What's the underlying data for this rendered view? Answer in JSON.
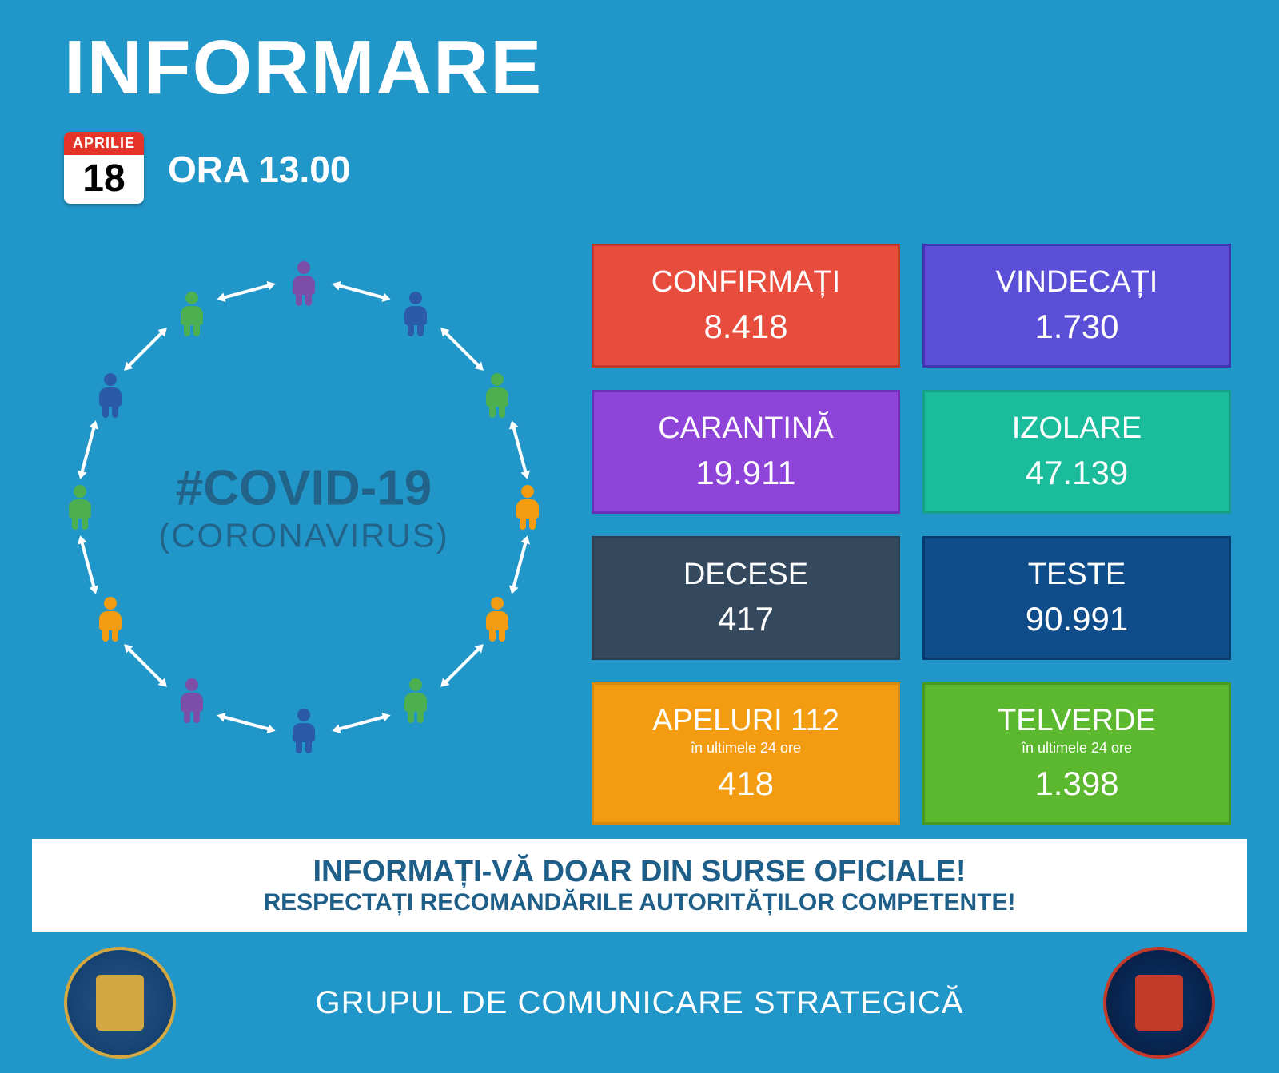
{
  "header": {
    "title": "INFORMARE",
    "date_month": "APRILIE",
    "date_day": "18",
    "time": "ORA 13.00"
  },
  "covid": {
    "hashtag": "#COVID-19",
    "subtitle": "(CORONAVIRUS)",
    "text_color": "#22638a"
  },
  "people_colors": {
    "blue": "#2a5aa8",
    "green": "#4caf50",
    "orange": "#f39c12",
    "purple": "#7b4fa8"
  },
  "stats": [
    {
      "label": "CONFIRMAȚI",
      "value": "8.418",
      "bg": "#e74c3c",
      "border": "#c0392b"
    },
    {
      "label": "VINDECAȚI",
      "value": "1.730",
      "bg": "#5b4fd8",
      "border": "#3f36b0"
    },
    {
      "label": "CARANTINĂ",
      "value": "19.911",
      "bg": "#8e44d8",
      "border": "#6a2fb8"
    },
    {
      "label": "IZOLARE",
      "value": "47.139",
      "bg": "#1abc9c",
      "border": "#16a085"
    },
    {
      "label": "DECESE",
      "value": "417",
      "bg": "#34495e",
      "border": "#2c3e50"
    },
    {
      "label": "TESTE",
      "value": "90.991",
      "bg": "#0e4d8a",
      "border": "#083a6e"
    },
    {
      "label": "APELURI 112",
      "sublabel": "în ultimele 24 ore",
      "value": "418",
      "bg": "#f39c12",
      "border": "#d68910"
    },
    {
      "label": "TELVERDE",
      "sublabel": "în ultimele 24 ore",
      "value": "1.398",
      "bg": "#5cb82e",
      "border": "#4a9824"
    }
  ],
  "banner": {
    "line1": "INFORMAȚI-VĂ DOAR DIN SURSE OFICIALE!",
    "line2": "RESPECTAȚI RECOMANDĂRILE AUTORITĂȚILOR COMPETENTE!"
  },
  "footer": {
    "text": "GRUPUL DE COMUNICARE STRATEGICĂ"
  },
  "background_color": "#2196c8"
}
